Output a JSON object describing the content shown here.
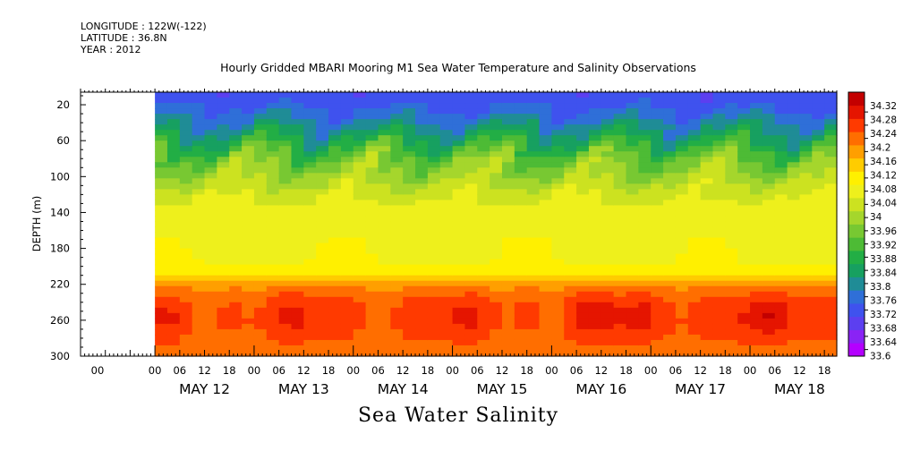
{
  "header": {
    "longitude": "LONGITUDE : 122W(-122)",
    "latitude": "LATITUDE : 36.8N",
    "year": "YEAR : 2012"
  },
  "title": "Hourly Gridded MBARI Mooring M1 Sea Water Temperature and Salinity Observations",
  "bottom_title": "Sea Water Salinity",
  "chart_data": {
    "type": "heatmap",
    "title": "Hourly Gridded MBARI Mooring M1 Sea Water Temperature and Salinity Observations",
    "subtitle": "Sea Water Salinity",
    "ylabel": "DEPTH (m)",
    "yticks": [
      20,
      60,
      100,
      140,
      180,
      220,
      260,
      300
    ],
    "ylim": [
      300,
      6
    ],
    "y_inverted": true,
    "xlabel": "",
    "xtick_hour_labels": [
      "00",
      "00",
      "06",
      "12",
      "18",
      "00",
      "06",
      "12",
      "18",
      "00",
      "06",
      "12",
      "18",
      "00",
      "06",
      "12",
      "18",
      "00",
      "06",
      "12",
      "18",
      "00",
      "06",
      "12",
      "18",
      "00",
      "06",
      "12",
      "18"
    ],
    "xday_labels": [
      "MAY 12",
      "MAY 13",
      "MAY 14",
      "MAY 15",
      "MAY 16",
      "MAY 17",
      "MAY 18"
    ],
    "x_start": "2012-05-11T06:00",
    "x_end": "2012-05-18T21:00",
    "data_start": "2012-05-12T00:00",
    "colorbar": {
      "levels": [
        33.6,
        33.64,
        33.68,
        33.72,
        33.76,
        33.8,
        33.84,
        33.88,
        33.92,
        33.96,
        34,
        34.04,
        34.08,
        34.12,
        34.16,
        34.2,
        34.24,
        34.28,
        34.32
      ],
      "colors": [
        "#b400ff",
        "#8a23f5",
        "#5c3ff0",
        "#3f52ee",
        "#2f6fd8",
        "#1f8c96",
        "#17a060",
        "#22ae45",
        "#4dbb35",
        "#78c832",
        "#a5d62c",
        "#cce220",
        "#eef01c",
        "#fff000",
        "#ffcc00",
        "#ff9f00",
        "#ff6e00",
        "#ff3a00",
        "#e51500",
        "#c30000"
      ]
    },
    "depth_profile_summary": [
      {
        "depth": 10,
        "salinity": 33.69
      },
      {
        "depth": 20,
        "salinity": 33.71
      },
      {
        "depth": 40,
        "salinity": 33.77
      },
      {
        "depth": 60,
        "salinity": 33.85
      },
      {
        "depth": 80,
        "salinity": 33.93
      },
      {
        "depth": 100,
        "salinity": 33.98
      },
      {
        "depth": 120,
        "salinity": 34.03
      },
      {
        "depth": 140,
        "salinity": 34.06
      },
      {
        "depth": 160,
        "salinity": 34.06
      },
      {
        "depth": 180,
        "salinity": 34.07
      },
      {
        "depth": 200,
        "salinity": 34.08
      },
      {
        "depth": 220,
        "salinity": 34.19
      },
      {
        "depth": 240,
        "salinity": 34.25
      },
      {
        "depth": 260,
        "salinity": 34.26
      },
      {
        "depth": 280,
        "salinity": 34.24
      },
      {
        "depth": 300,
        "salinity": 34.21
      }
    ],
    "grid": false
  }
}
